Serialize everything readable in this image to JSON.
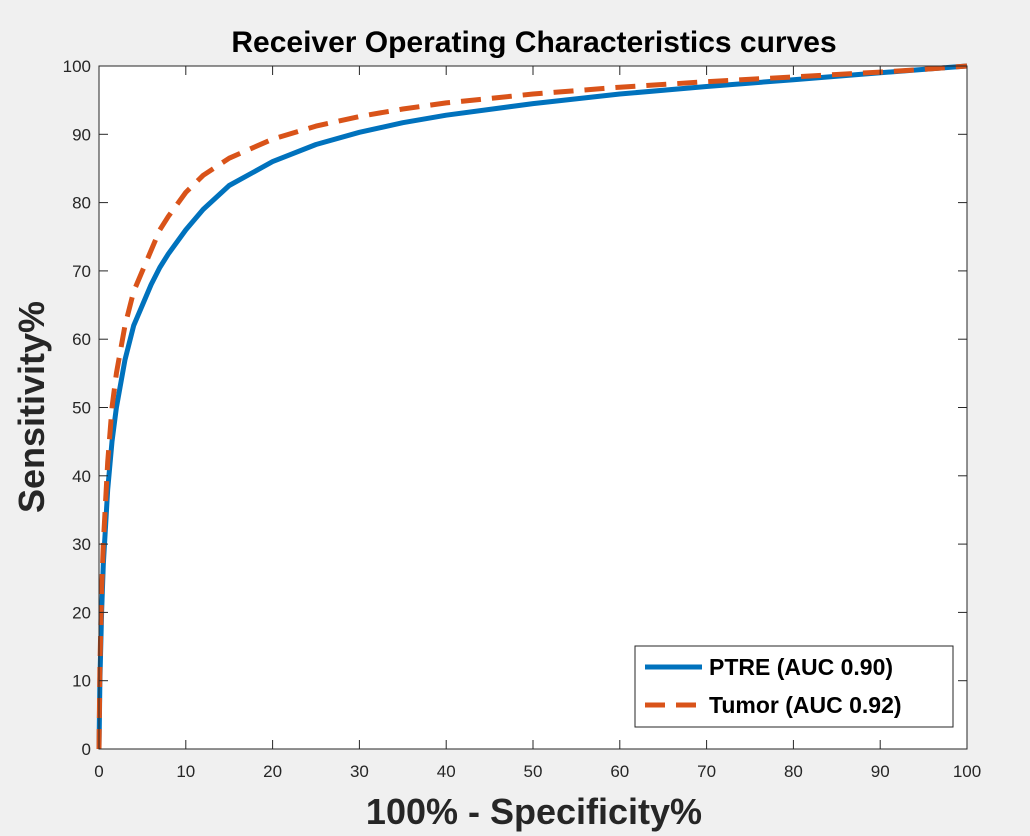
{
  "chart_data": {
    "type": "line",
    "title": "Receiver Operating Characteristics curves",
    "xlabel": "100% - Specificity%",
    "ylabel": "Sensitivity%",
    "xlim": [
      0,
      100
    ],
    "ylim": [
      0,
      100
    ],
    "x_ticks": [
      "0",
      "10",
      "20",
      "30",
      "40",
      "50",
      "60",
      "70",
      "80",
      "90",
      "100"
    ],
    "y_ticks": [
      "0",
      "10",
      "20",
      "30",
      "40",
      "50",
      "60",
      "70",
      "80",
      "90",
      "100"
    ],
    "grid": false,
    "legend_position": "bottom-right",
    "series": [
      {
        "name": "PTRE (AUC 0.90)",
        "color": "#0072BD",
        "line_style": "solid",
        "x": [
          0,
          0.1,
          0.3,
          0.5,
          1,
          1.5,
          2,
          3,
          4,
          5,
          6,
          7,
          8,
          10,
          12,
          15,
          20,
          25,
          30,
          35,
          40,
          50,
          60,
          70,
          80,
          90,
          95,
          100
        ],
        "y": [
          0,
          10,
          20,
          27,
          38,
          45,
          50,
          57,
          62,
          65,
          68,
          70.5,
          72.5,
          76,
          79,
          82.5,
          86,
          88.5,
          90.3,
          91.7,
          92.8,
          94.5,
          95.9,
          97,
          98,
          99,
          99.5,
          100
        ]
      },
      {
        "name": "Tumor (AUC 0.92)",
        "color": "#D95319",
        "line_style": "dashed",
        "x": [
          0,
          0.1,
          0.3,
          0.5,
          1,
          1.5,
          2,
          3,
          4,
          5,
          6,
          7,
          8,
          10,
          12,
          15,
          20,
          25,
          30,
          35,
          40,
          50,
          60,
          70,
          80,
          90,
          95,
          100
        ],
        "y": [
          0,
          12,
          23,
          30,
          42,
          50,
          55,
          62,
          67,
          70,
          73,
          76,
          78,
          81.5,
          84,
          86.5,
          89.3,
          91.2,
          92.6,
          93.7,
          94.6,
          95.9,
          96.9,
          97.7,
          98.4,
          99.1,
          99.5,
          100
        ]
      }
    ]
  }
}
